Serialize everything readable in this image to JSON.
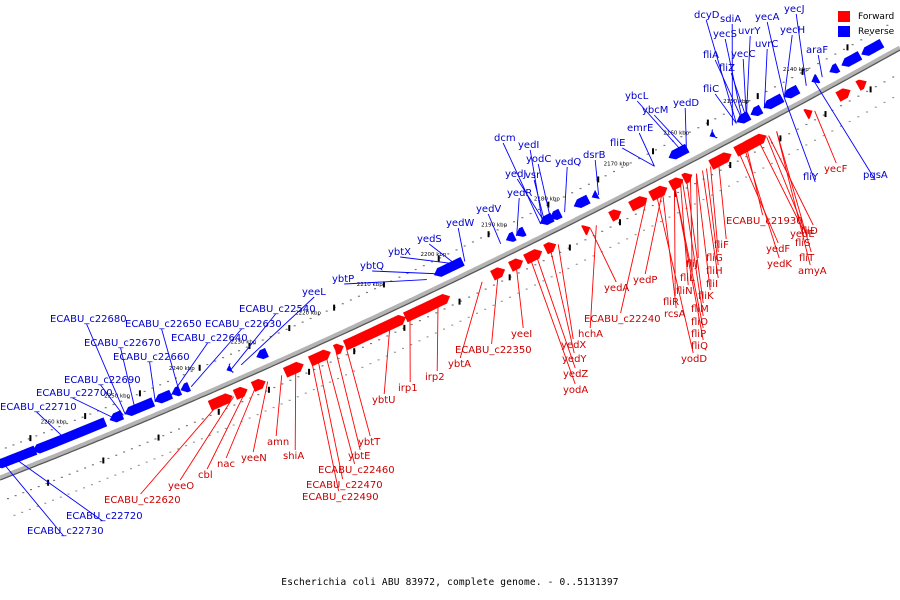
{
  "legend": {
    "forward": {
      "label": "Forward",
      "color": "#ff0000"
    },
    "reverse": {
      "label": "Reverse",
      "color": "#0000ff"
    }
  },
  "caption": "Escherichia coli ABU 83972, complete genome. - 0..5131397",
  "colors": {
    "forward": "#ff0000",
    "reverse": "#0000ff",
    "forward_label": "#cc0000",
    "reverse_label": "#0000cc",
    "backbone": "#b4b4b4"
  },
  "scale_ticks": [
    "2140 kbp",
    "2150 kbp",
    "2160 kbp",
    "2170 kbp",
    "2180 kbp",
    "2190 kbp",
    "2200 kbp",
    "2210 kbp",
    "2220 kbp",
    "2230 kbp",
    "2240 kbp",
    "2250 kbp",
    "2260 kbp"
  ],
  "reverse_genes": [
    "dcyD",
    "sdiA",
    "yecA",
    "yecJ",
    "yecS",
    "uvrY",
    "araF",
    "yecC",
    "fliA",
    "yecH",
    "uvrC",
    "fliZ",
    "fliC",
    "ybcL",
    "ybcM",
    "yedD",
    "emrE",
    "fliE",
    "dcm",
    "yedI",
    "dsrB",
    "yodC",
    "yedQ",
    "vsr",
    "yedJ",
    "yedR",
    "yedV",
    "yedW",
    "yedS",
    "ybtX",
    "ybtQ",
    "ybtP",
    "yeeL",
    "ECABU_c22540",
    "ECABU_c22630",
    "ECABU_c22650",
    "ECABU_c22640",
    "ECABU_c22680",
    "ECABU_c22670",
    "ECABU_c22660",
    "ECABU_c22690",
    "ECABU_c22700",
    "ECABU_c22710",
    "fliY",
    "pgsA",
    "ECABU_c22720",
    "ECABU_c22730"
  ],
  "forward_genes": [
    "yecF",
    "ECABU_c21930",
    "fliD",
    "yedE",
    "fliS",
    "yedF",
    "fliT",
    "yedK",
    "amyA",
    "fliF",
    "fliG",
    "fliH",
    "fliJ",
    "fliI",
    "yedP",
    "fliL",
    "fliK",
    "fliN",
    "fliR",
    "fliM",
    "rcsA",
    "fliO",
    "fliP",
    "fliQ",
    "yodD",
    "yedA",
    "ECABU_c22240",
    "hchA",
    "yedX",
    "yedY",
    "yeeI",
    "yedZ",
    "yodA",
    "ECABU_c22350",
    "ybtA",
    "irp2",
    "irp1",
    "ybtU",
    "ybtT",
    "ybtE",
    "ECABU_c22460",
    "ECABU_c22470",
    "ECABU_c22490",
    "shiA",
    "amn",
    "yeeN",
    "nac",
    "cbl",
    "yeeO",
    "ECABU_c22620"
  ]
}
